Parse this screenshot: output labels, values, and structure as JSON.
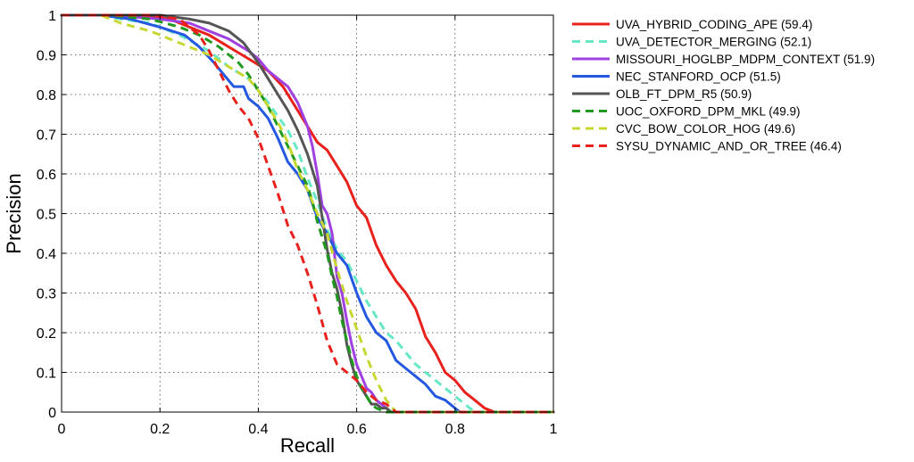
{
  "chart_data": {
    "type": "line",
    "title": "",
    "xlabel": "Recall",
    "ylabel": "Precision",
    "xlim": [
      0,
      1
    ],
    "ylim": [
      0,
      1
    ],
    "xticks": [
      "0",
      "0.2",
      "0.4",
      "0.6",
      "0.8",
      "1"
    ],
    "yticks": [
      "0",
      "0.1",
      "0.2",
      "0.3",
      "0.4",
      "0.5",
      "0.6",
      "0.7",
      "0.8",
      "0.9",
      "1"
    ],
    "grid": true,
    "legend_position": "outside-right",
    "series": [
      {
        "name": "UVA_HYBRID_CODING_APE (59.4)",
        "color": "#e8211d",
        "dash": "solid",
        "x": [
          0,
          0.08,
          0.15,
          0.22,
          0.26,
          0.3,
          0.34,
          0.38,
          0.42,
          0.45,
          0.48,
          0.5,
          0.52,
          0.54,
          0.56,
          0.58,
          0.6,
          0.62,
          0.64,
          0.66,
          0.68,
          0.7,
          0.72,
          0.74,
          0.76,
          0.78,
          0.8,
          0.82,
          0.84,
          0.86,
          0.87,
          0.88,
          1.0
        ],
        "y": [
          1,
          1,
          1,
          0.99,
          0.97,
          0.95,
          0.92,
          0.89,
          0.86,
          0.82,
          0.76,
          0.72,
          0.68,
          0.66,
          0.62,
          0.58,
          0.52,
          0.49,
          0.42,
          0.37,
          0.33,
          0.3,
          0.26,
          0.19,
          0.15,
          0.1,
          0.08,
          0.05,
          0.03,
          0.01,
          0.005,
          0,
          0
        ]
      },
      {
        "name": "UVA_DETECTOR_MERGING (52.1)",
        "color": "#66e8c7",
        "dash": "dashed",
        "x": [
          0,
          0.08,
          0.12,
          0.18,
          0.24,
          0.3,
          0.34,
          0.38,
          0.42,
          0.46,
          0.48,
          0.5,
          0.52,
          0.54,
          0.56,
          0.58,
          0.6,
          0.62,
          0.64,
          0.66,
          0.68,
          0.7,
          0.72,
          0.74,
          0.76,
          0.78,
          0.8,
          0.82,
          0.84,
          1.0
        ],
        "y": [
          1,
          1,
          0.99,
          0.98,
          0.95,
          0.91,
          0.87,
          0.84,
          0.78,
          0.71,
          0.66,
          0.59,
          0.53,
          0.46,
          0.41,
          0.38,
          0.33,
          0.28,
          0.24,
          0.2,
          0.18,
          0.15,
          0.12,
          0.1,
          0.08,
          0.06,
          0.04,
          0.02,
          0,
          0
        ]
      },
      {
        "name": "MISSOURI_HOGLBP_MDPM_CONTEXT (51.9)",
        "color": "#a040e0",
        "dash": "solid",
        "x": [
          0,
          0.1,
          0.2,
          0.26,
          0.3,
          0.34,
          0.38,
          0.4,
          0.42,
          0.44,
          0.46,
          0.48,
          0.5,
          0.51,
          0.52,
          0.53,
          0.54,
          0.55,
          0.56,
          0.57,
          0.58,
          0.59,
          0.6,
          0.61,
          0.62,
          0.63,
          0.64,
          0.65,
          0.66,
          0.67,
          1.0
        ],
        "y": [
          1,
          1,
          0.99,
          0.98,
          0.96,
          0.94,
          0.91,
          0.89,
          0.86,
          0.84,
          0.82,
          0.78,
          0.72,
          0.67,
          0.6,
          0.52,
          0.5,
          0.45,
          0.34,
          0.3,
          0.23,
          0.17,
          0.12,
          0.09,
          0.06,
          0.05,
          0.03,
          0.02,
          0.01,
          0,
          0
        ]
      },
      {
        "name": "NEC_STANFORD_OCP (51.5)",
        "color": "#2458e0",
        "dash": "solid",
        "x": [
          0,
          0.08,
          0.14,
          0.2,
          0.25,
          0.28,
          0.31,
          0.33,
          0.35,
          0.37,
          0.38,
          0.4,
          0.42,
          0.44,
          0.46,
          0.48,
          0.5,
          0.52,
          0.54,
          0.56,
          0.58,
          0.6,
          0.62,
          0.64,
          0.66,
          0.68,
          0.7,
          0.72,
          0.74,
          0.76,
          0.78,
          0.8,
          0.81,
          1.0
        ],
        "y": [
          1,
          1,
          0.99,
          0.97,
          0.95,
          0.92,
          0.88,
          0.85,
          0.82,
          0.82,
          0.79,
          0.77,
          0.74,
          0.69,
          0.63,
          0.6,
          0.56,
          0.49,
          0.45,
          0.4,
          0.37,
          0.3,
          0.24,
          0.2,
          0.18,
          0.13,
          0.11,
          0.09,
          0.07,
          0.04,
          0.03,
          0.01,
          0,
          0
        ]
      },
      {
        "name": "OLB_FT_DPM_R5 (50.9)",
        "color": "#555555",
        "dash": "solid",
        "x": [
          0,
          0.1,
          0.2,
          0.26,
          0.3,
          0.34,
          0.37,
          0.4,
          0.42,
          0.44,
          0.46,
          0.48,
          0.5,
          0.52,
          0.53,
          0.54,
          0.55,
          0.56,
          0.57,
          0.58,
          0.59,
          0.6,
          0.61,
          0.62,
          0.63,
          0.64,
          0.65,
          0.66,
          0.67,
          1.0
        ],
        "y": [
          1,
          1,
          1,
          0.99,
          0.98,
          0.96,
          0.93,
          0.88,
          0.84,
          0.8,
          0.76,
          0.71,
          0.65,
          0.57,
          0.49,
          0.41,
          0.35,
          0.31,
          0.25,
          0.17,
          0.12,
          0.08,
          0.06,
          0.04,
          0.02,
          0.02,
          0.01,
          0.01,
          0,
          0
        ]
      },
      {
        "name": "UOC_OXFORD_DPM_MKL (49.9)",
        "color": "#1f9a1f",
        "dash": "dashed",
        "x": [
          0,
          0.1,
          0.18,
          0.24,
          0.28,
          0.32,
          0.36,
          0.38,
          0.4,
          0.42,
          0.44,
          0.46,
          0.48,
          0.5,
          0.51,
          0.52,
          0.53,
          0.54,
          0.55,
          0.56,
          0.57,
          0.58,
          0.59,
          0.6,
          0.61,
          0.62,
          0.63,
          0.64,
          0.65,
          0.66,
          1.0
        ],
        "y": [
          1,
          1,
          0.99,
          0.97,
          0.95,
          0.92,
          0.88,
          0.85,
          0.81,
          0.77,
          0.72,
          0.67,
          0.62,
          0.57,
          0.53,
          0.48,
          0.44,
          0.4,
          0.34,
          0.29,
          0.23,
          0.18,
          0.13,
          0.09,
          0.06,
          0.04,
          0.02,
          0.01,
          0.005,
          0,
          0
        ]
      },
      {
        "name": "CVC_BOW_COLOR_HOG (49.6)",
        "color": "#c8d832",
        "dash": "dashed",
        "x": [
          0,
          0.08,
          0.12,
          0.18,
          0.22,
          0.26,
          0.3,
          0.34,
          0.38,
          0.4,
          0.42,
          0.44,
          0.46,
          0.48,
          0.5,
          0.52,
          0.54,
          0.56,
          0.58,
          0.6,
          0.62,
          0.64,
          0.66,
          0.68,
          1.0
        ],
        "y": [
          1,
          1,
          0.98,
          0.96,
          0.94,
          0.92,
          0.9,
          0.87,
          0.84,
          0.81,
          0.77,
          0.73,
          0.68,
          0.61,
          0.56,
          0.5,
          0.45,
          0.36,
          0.28,
          0.21,
          0.14,
          0.08,
          0.03,
          0,
          0
        ]
      },
      {
        "name": "SYSU_DYNAMIC_AND_OR_TREE (46.4)",
        "color": "#e8211d",
        "dash": "dashed",
        "x": [
          0,
          0.1,
          0.18,
          0.24,
          0.26,
          0.28,
          0.3,
          0.32,
          0.34,
          0.36,
          0.38,
          0.4,
          0.42,
          0.44,
          0.46,
          0.48,
          0.5,
          0.52,
          0.54,
          0.56,
          0.58,
          0.6,
          0.62,
          0.64,
          0.66,
          0.68,
          1.0
        ],
        "y": [
          1,
          1,
          1,
          0.99,
          0.97,
          0.95,
          0.91,
          0.86,
          0.81,
          0.77,
          0.74,
          0.69,
          0.62,
          0.55,
          0.47,
          0.42,
          0.35,
          0.27,
          0.18,
          0.12,
          0.1,
          0.08,
          0.05,
          0.03,
          0.02,
          0,
          0
        ]
      }
    ]
  }
}
